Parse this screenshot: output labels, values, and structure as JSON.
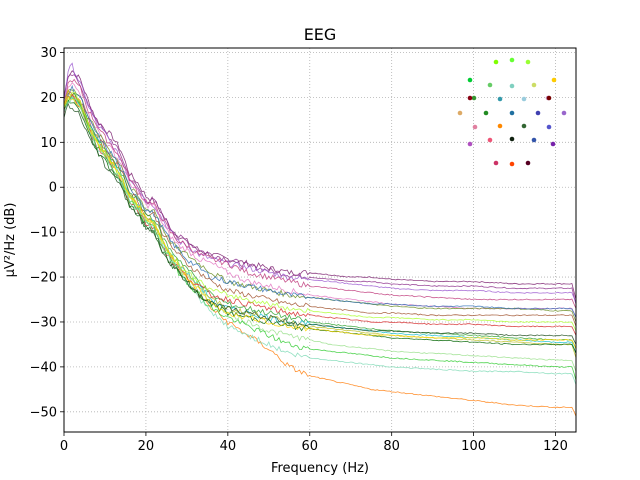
{
  "chart_data": {
    "type": "line",
    "title": "EEG",
    "xlabel": "Frequency (Hz)",
    "ylabel": "µV²/Hz (dB)",
    "xlim": [
      0,
      125
    ],
    "ylim": [
      -54.5,
      31
    ],
    "x_ticks": [
      0,
      20,
      40,
      60,
      80,
      100,
      120
    ],
    "x_tick_labels": [
      "0",
      "20",
      "40",
      "60",
      "80",
      "100",
      "120"
    ],
    "y_ticks": [
      30,
      20,
      10,
      0,
      -10,
      -20,
      -30,
      -40,
      -50
    ],
    "y_tick_labels": [
      "30",
      "20",
      "10",
      "0",
      "−10",
      "−20",
      "−30",
      "−40",
      "−50"
    ],
    "grid": true,
    "grid_style": "dotted",
    "x": [
      0,
      1,
      2,
      4,
      6,
      8,
      10,
      12,
      14,
      16,
      18,
      20,
      22,
      24,
      26,
      28,
      30,
      33,
      36,
      40,
      45,
      50,
      55,
      60,
      65,
      70,
      75,
      80,
      90,
      100,
      110,
      120,
      124,
      125
    ],
    "series": [
      {
        "color": "#7a1f6e",
        "values": [
          20,
          25,
          26,
          24,
          19,
          15,
          13,
          11,
          8,
          3,
          1,
          -2,
          -3,
          -6,
          -9,
          -11,
          -12,
          -14,
          -15,
          -16,
          -17,
          -18,
          -19,
          -19,
          -19.5,
          -20,
          -20,
          -20.5,
          -21,
          -21,
          -21.5,
          -21.5,
          -21.5,
          -25
        ]
      },
      {
        "color": "#8b2c8a",
        "values": [
          20,
          24,
          25,
          23,
          18,
          15,
          12,
          10,
          7,
          2,
          0,
          -3,
          -3,
          -6,
          -9,
          -11,
          -12,
          -14,
          -15,
          -16,
          -17.5,
          -18.5,
          -19.5,
          -20,
          -20.5,
          -21,
          -21,
          -21.5,
          -22,
          -22,
          -22.5,
          -22.5,
          -22.5,
          -26
        ]
      },
      {
        "color": "#9b59d0",
        "values": [
          19,
          26,
          27,
          23,
          18,
          14,
          12,
          9,
          6,
          2,
          0,
          -3,
          -4,
          -7,
          -10,
          -12,
          -13,
          -15,
          -16,
          -17,
          -18,
          -19,
          -20,
          -20.5,
          -21,
          -21.5,
          -22,
          -22.5,
          -23,
          -23,
          -23.5,
          -23.5,
          -23.5,
          -26
        ]
      },
      {
        "color": "#c0397b",
        "values": [
          19,
          23,
          24,
          22,
          17,
          14,
          11,
          9,
          6,
          2,
          -1,
          -3,
          -4,
          -7,
          -10,
          -12,
          -13,
          -15,
          -16,
          -17,
          -19,
          -20,
          -21,
          -22,
          -22.5,
          -23,
          -23.5,
          -24,
          -24.5,
          -25,
          -25,
          -25,
          -25,
          -27
        ]
      },
      {
        "color": "#e377c2",
        "values": [
          18,
          22,
          23,
          21,
          16,
          13,
          10,
          8,
          5,
          1,
          -1,
          -4,
          -4,
          -8,
          -11,
          -13,
          -14,
          -16,
          -17,
          -19,
          -21,
          -22,
          -23,
          -24,
          -24.5,
          -25,
          -25.5,
          -26,
          -26.5,
          -27,
          -27,
          -27,
          -27,
          -29
        ]
      },
      {
        "color": "#6b8e23",
        "values": [
          18,
          22,
          22,
          20,
          16,
          12,
          10,
          7,
          5,
          0,
          -2,
          -5,
          -5,
          -9,
          -12,
          -14,
          -15,
          -17,
          -19,
          -21,
          -22,
          -23,
          -24,
          -24.5,
          -25,
          -25.5,
          -26,
          -26.5,
          -27,
          -27,
          -27,
          -27.5,
          -27.5,
          -30
        ]
      },
      {
        "color": "#2f6fb5",
        "values": [
          17,
          21,
          22,
          20,
          15,
          12,
          9,
          7,
          4,
          0,
          -2,
          -5,
          -6,
          -9,
          -12,
          -14,
          -16,
          -18,
          -20,
          -21,
          -22,
          -23,
          -24,
          -24.5,
          -25,
          -25.5,
          -26,
          -26,
          -26.5,
          -26.5,
          -27,
          -27,
          -27,
          -29
        ]
      },
      {
        "color": "#a0522d",
        "values": [
          17,
          21,
          21,
          19,
          15,
          11,
          9,
          6,
          4,
          -1,
          -3,
          -6,
          -6,
          -10,
          -13,
          -15,
          -17,
          -19,
          -21,
          -23,
          -24,
          -25,
          -26,
          -26.5,
          -27,
          -27.5,
          -28,
          -28,
          -28.5,
          -28.5,
          -28.5,
          -28.5,
          -28.5,
          -31
        ]
      },
      {
        "color": "#2ca02c",
        "values": [
          17,
          20,
          21,
          19,
          14,
          11,
          8,
          6,
          3,
          -1,
          -3,
          -6,
          -7,
          -11,
          -14,
          -16,
          -18,
          -21,
          -24,
          -26,
          -27,
          -28,
          -29,
          -30,
          -30.5,
          -31,
          -31.5,
          -32,
          -32.5,
          -33,
          -33.5,
          -34,
          -34,
          -36
        ]
      },
      {
        "color": "#17becf",
        "values": [
          18,
          20,
          20,
          18,
          14,
          11,
          8,
          5,
          3,
          -2,
          -4,
          -7,
          -8,
          -12,
          -15,
          -17,
          -19,
          -22,
          -25,
          -27,
          -28,
          -29,
          -30,
          -30.5,
          -31,
          -31.5,
          -32,
          -32.5,
          -33,
          -33.5,
          -34,
          -34.5,
          -34.5,
          -37
        ]
      },
      {
        "color": "#ff7f0e",
        "values": [
          18,
          21,
          21,
          19,
          14,
          10,
          8,
          5,
          2,
          -2,
          -4,
          -7,
          -8,
          -12,
          -15,
          -18,
          -20,
          -24,
          -27,
          -30,
          -33,
          -36,
          -40,
          -42,
          -43,
          -44,
          -45,
          -45.5,
          -46.5,
          -47.5,
          -48.5,
          -49,
          -49,
          -51
        ]
      },
      {
        "color": "#bcbd22",
        "values": [
          18,
          21,
          21,
          19,
          14,
          10,
          8,
          5,
          2,
          -2,
          -4,
          -7,
          -8,
          -12,
          -15,
          -17,
          -19,
          -22,
          -25,
          -27,
          -28,
          -29,
          -30,
          -31,
          -31.5,
          -32,
          -32.5,
          -33,
          -33.5,
          -34,
          -34.5,
          -35,
          -35,
          -38
        ]
      },
      {
        "color": "#98df8a",
        "values": [
          17,
          20,
          20,
          18,
          13,
          10,
          7,
          4,
          2,
          -3,
          -5,
          -8,
          -9,
          -13,
          -16,
          -18,
          -20,
          -23,
          -26,
          -28,
          -30,
          -32,
          -33,
          -34,
          -35,
          -35.5,
          -36,
          -36.5,
          -37,
          -37.5,
          -38,
          -38.5,
          -38.5,
          -41
        ]
      },
      {
        "color": "#d62728",
        "values": [
          17,
          20,
          20,
          18,
          13,
          9,
          7,
          4,
          1,
          -3,
          -5,
          -8,
          -9,
          -13,
          -16,
          -18,
          -20,
          -22,
          -24,
          -25,
          -26,
          -27,
          -28,
          -28.5,
          -29,
          -29.5,
          -30,
          -30,
          -30.5,
          -30.5,
          -31,
          -31,
          -31,
          -33
        ]
      },
      {
        "color": "#32cd32",
        "values": [
          18,
          19,
          20,
          18,
          13,
          9,
          7,
          4,
          1,
          -3,
          -5,
          -8,
          -9,
          -13,
          -16,
          -19,
          -21,
          -24,
          -27,
          -29,
          -31,
          -33,
          -35,
          -36,
          -36.5,
          -37,
          -37.5,
          -38,
          -38.5,
          -39,
          -39.5,
          -40,
          -40,
          -43
        ]
      },
      {
        "color": "#006400",
        "values": [
          17,
          19,
          19,
          17,
          12,
          8,
          6,
          3,
          1,
          -4,
          -6,
          -9,
          -10,
          -14,
          -17,
          -19,
          -21,
          -24,
          -26,
          -28,
          -29,
          -30,
          -31,
          -31.5,
          -32,
          -32.5,
          -33,
          -33.5,
          -34,
          -34.5,
          -35,
          -35,
          -35,
          -37
        ]
      },
      {
        "color": "#adff2f",
        "values": [
          18,
          20,
          21,
          19,
          14,
          10,
          8,
          5,
          2,
          -2,
          -4,
          -7,
          -8,
          -12,
          -15,
          -17,
          -19,
          -21,
          -23,
          -24,
          -25,
          -26,
          -27,
          -27.5,
          -28,
          -28.5,
          -29,
          -29,
          -29.5,
          -29.5,
          -30,
          -30,
          -30,
          -32
        ]
      },
      {
        "color": "#ffd700",
        "values": [
          18,
          20,
          20,
          18,
          13,
          10,
          7,
          5,
          2,
          -2,
          -4,
          -7,
          -8,
          -12,
          -15,
          -18,
          -20,
          -23,
          -26,
          -28,
          -29,
          -30,
          -31,
          -31.5,
          -32,
          -32.5,
          -33,
          -33,
          -33.5,
          -33.5,
          -34,
          -34,
          -34,
          -36
        ]
      },
      {
        "color": "#7fdbb6",
        "values": [
          17,
          19,
          20,
          18,
          13,
          9,
          7,
          4,
          1,
          -3,
          -5,
          -8,
          -9,
          -13,
          -16,
          -18,
          -21,
          -25,
          -28,
          -31,
          -33,
          -35,
          -37,
          -38,
          -38.5,
          -39,
          -39.5,
          -40,
          -40.5,
          -41,
          -41,
          -41.5,
          -41.5,
          -44
        ]
      },
      {
        "color": "#1f4f1f",
        "values": [
          16,
          18,
          18,
          16,
          11,
          8,
          5,
          3,
          0,
          -4,
          -6,
          -9,
          -10,
          -14,
          -17,
          -19,
          -21,
          -24,
          -26,
          -27,
          -28,
          -29,
          -30,
          -30.5,
          -31,
          -31.5,
          -32,
          -32,
          -32.5,
          -32.5,
          -33,
          -33,
          -33,
          -35
        ]
      }
    ],
    "topomap": {
      "type": "sensor-legend",
      "sensors": [
        {
          "color": "#7fff00"
        },
        {
          "color": "#66ff33"
        },
        {
          "color": "#99ff33"
        },
        {
          "color": "#00cc33"
        },
        {
          "color": "#66cc66"
        },
        {
          "color": "#80d0c0"
        },
        {
          "color": "#ccdd66"
        },
        {
          "color": "#ffcc00"
        },
        {
          "color": "#339933"
        },
        {
          "color": "#3399aa"
        },
        {
          "color": "#99ccdd"
        },
        {
          "color": "#cc99cc"
        },
        {
          "color": "#ddaa66"
        },
        {
          "color": "#228b22"
        },
        {
          "color": "#2070a0"
        },
        {
          "color": "#4040b0"
        },
        {
          "color": "#9966cc"
        },
        {
          "color": "#e080a0"
        },
        {
          "color": "#ff8800"
        },
        {
          "color": "#336633"
        },
        {
          "color": "#5555cc"
        },
        {
          "color": "#b050c0"
        },
        {
          "color": "#ee5577"
        },
        {
          "color": "#112211"
        },
        {
          "color": "#3355aa"
        },
        {
          "color": "#7722aa"
        },
        {
          "color": "#cc3366"
        },
        {
          "color": "#ff4400"
        },
        {
          "color": "#550022"
        },
        {
          "color": "#880011"
        },
        {
          "color": "#770000"
        }
      ]
    }
  }
}
